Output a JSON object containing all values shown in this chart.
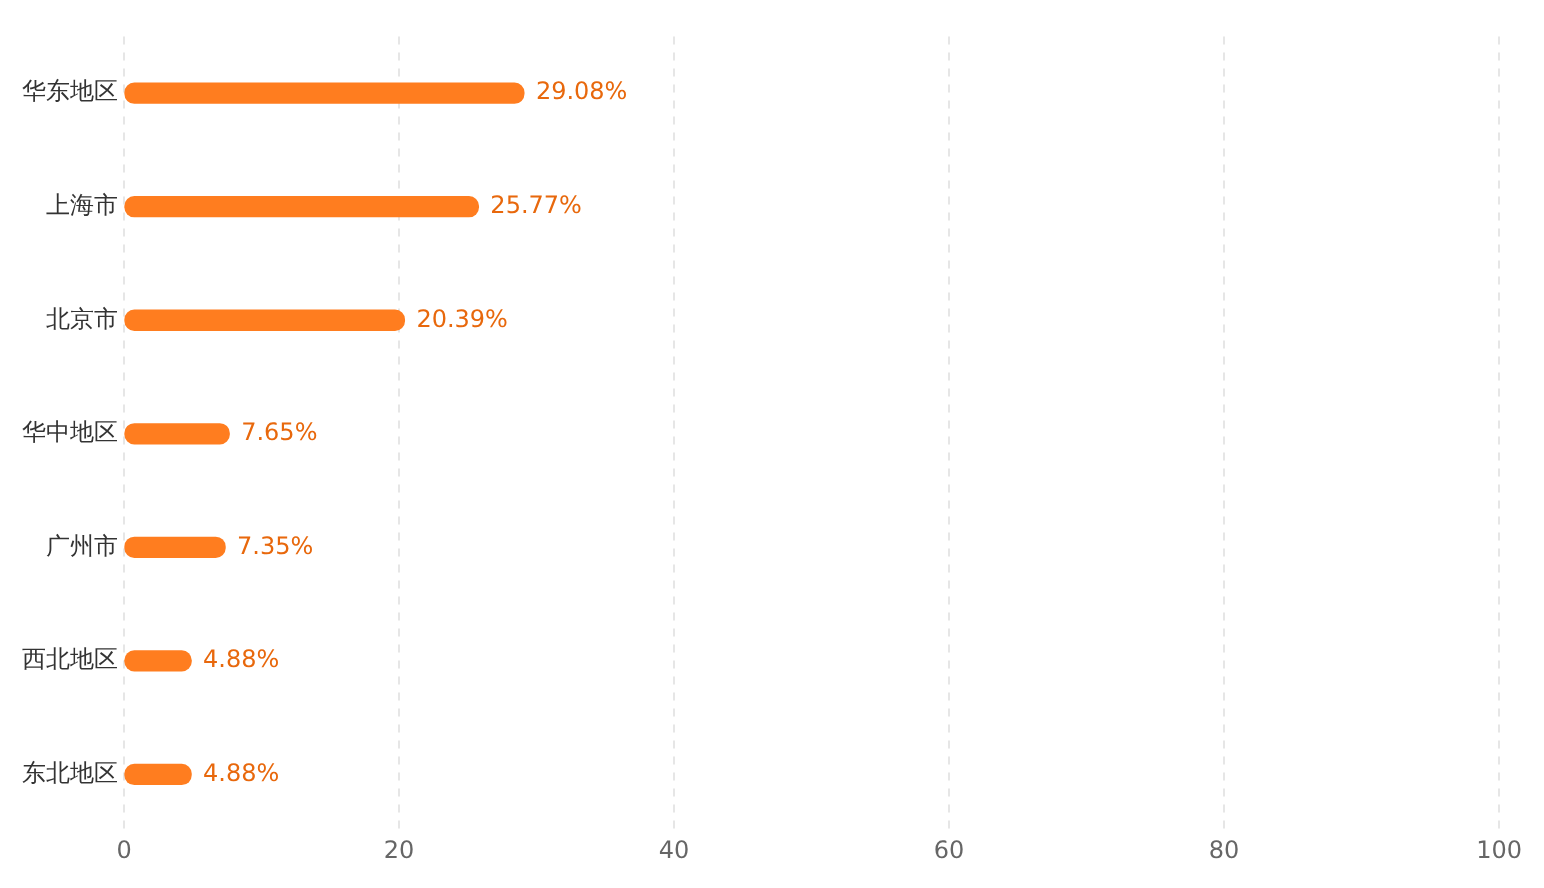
{
  "chart_data": {
    "type": "bar",
    "orientation": "horizontal",
    "categories": [
      "华东地区",
      "上海市",
      "北京市",
      "华中地区",
      "广州市",
      "西北地区",
      "东北地区"
    ],
    "values": [
      29.08,
      25.77,
      20.39,
      7.65,
      7.35,
      4.88,
      4.88
    ],
    "value_labels": [
      "29.08%",
      "25.77%",
      "20.39%",
      "7.65%",
      "7.35%",
      "4.88%",
      "4.88%"
    ],
    "color": "#ff7d1f",
    "xlim": [
      0,
      100
    ],
    "xticks": [
      0,
      20,
      40,
      60,
      80,
      100
    ],
    "grid": "x",
    "legend": false
  }
}
